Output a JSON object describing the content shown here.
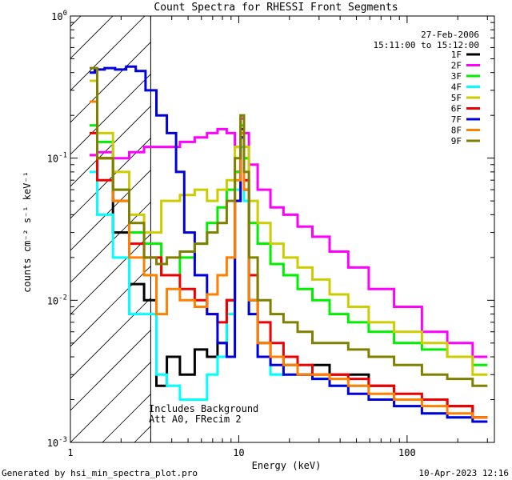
{
  "chart_data": {
    "type": "line",
    "title": "Count Spectra for RHESSI Front Segments",
    "xlabel": "Energy (keV)",
    "ylabel": "counts cm⁻² s⁻¹ keV⁻¹",
    "xscale": "log",
    "yscale": "log",
    "xlim": [
      1,
      330
    ],
    "ylim": [
      0.001,
      1
    ],
    "x_ticks": [
      {
        "value": 1,
        "label": "1"
      },
      {
        "value": 10,
        "label": "10"
      },
      {
        "value": 100,
        "label": "100"
      }
    ],
    "y_ticks": [
      {
        "value": 1,
        "base": "10",
        "exp": "0"
      },
      {
        "value": 0.1,
        "base": "10",
        "exp": "-1"
      },
      {
        "value": 0.01,
        "base": "10",
        "exp": "-2"
      },
      {
        "value": 0.001,
        "base": "10",
        "exp": "-3"
      }
    ],
    "date": "27-Feb-2006",
    "time_range": "15:11:00 to 15:12:00",
    "annotations": [
      "Includes Background",
      "Att A0, FRecim 2"
    ],
    "excluded_region_below_keV": 3,
    "series": [
      {
        "name": "1F",
        "color": "#000000",
        "x": [
          1.3,
          1.6,
          2.0,
          2.5,
          3.0,
          3.5,
          4.0,
          5.0,
          6.0,
          7.0,
          8.0,
          9.0,
          10.0,
          10.5,
          11.0,
          12.0,
          14.0,
          17.0,
          20.0,
          25.0,
          30.0,
          40.0,
          50.0,
          70.0,
          100.0,
          150.0,
          200.0,
          300.0
        ],
        "y": [
          0.25,
          0.1,
          0.03,
          0.013,
          0.01,
          0.0025,
          0.004,
          0.003,
          0.0045,
          0.004,
          0.005,
          0.01,
          0.08,
          0.16,
          0.06,
          0.01,
          0.005,
          0.004,
          0.0035,
          0.003,
          0.0035,
          0.003,
          0.003,
          0.0025,
          0.002,
          0.002,
          0.0018,
          0.0015
        ]
      },
      {
        "name": "2F",
        "color": "#ff00ff",
        "x": [
          1.3,
          1.6,
          2.0,
          2.5,
          3.0,
          4.0,
          5.0,
          6.0,
          7.0,
          8.0,
          9.0,
          10.0,
          10.5,
          11.0,
          12.0,
          14.0,
          17.0,
          20.0,
          25.0,
          30.0,
          40.0,
          50.0,
          70.0,
          100.0,
          150.0,
          200.0,
          300.0
        ],
        "y": [
          0.105,
          0.11,
          0.1,
          0.11,
          0.12,
          0.12,
          0.13,
          0.14,
          0.15,
          0.16,
          0.15,
          0.12,
          0.19,
          0.15,
          0.09,
          0.06,
          0.045,
          0.04,
          0.033,
          0.028,
          0.022,
          0.017,
          0.012,
          0.009,
          0.006,
          0.005,
          0.004
        ]
      },
      {
        "name": "3F",
        "color": "#00ee00",
        "x": [
          1.3,
          1.6,
          2.0,
          2.5,
          3.0,
          4.0,
          5.0,
          6.0,
          7.0,
          8.0,
          9.0,
          10.0,
          10.5,
          11.0,
          12.0,
          14.0,
          17.0,
          20.0,
          25.0,
          30.0,
          40.0,
          50.0,
          70.0,
          100.0,
          150.0,
          200.0,
          300.0
        ],
        "y": [
          0.17,
          0.13,
          0.06,
          0.03,
          0.025,
          0.015,
          0.02,
          0.025,
          0.035,
          0.045,
          0.06,
          0.08,
          0.17,
          0.1,
          0.035,
          0.025,
          0.018,
          0.015,
          0.012,
          0.01,
          0.008,
          0.007,
          0.006,
          0.005,
          0.0045,
          0.004,
          0.0035
        ]
      },
      {
        "name": "4F",
        "color": "#00ffff",
        "x": [
          1.3,
          1.6,
          2.0,
          2.5,
          3.0,
          3.5,
          4.0,
          5.0,
          6.0,
          7.0,
          8.0,
          9.0,
          10.0,
          10.5,
          11.0,
          12.0,
          14.0,
          17.0,
          20.0,
          25.0,
          30.0,
          40.0,
          50.0,
          70.0,
          100.0,
          150.0,
          200.0,
          300.0
        ],
        "y": [
          0.08,
          0.04,
          0.02,
          0.008,
          0.008,
          0.003,
          0.0025,
          0.002,
          0.002,
          0.003,
          0.004,
          0.008,
          0.06,
          0.12,
          0.05,
          0.008,
          0.004,
          0.003,
          0.0035,
          0.003,
          0.0028,
          0.0025,
          0.0025,
          0.002,
          0.0018,
          0.0016,
          0.0015,
          0.0014
        ]
      },
      {
        "name": "5F",
        "color": "#cccc00",
        "x": [
          1.3,
          1.6,
          2.0,
          2.5,
          3.0,
          4.0,
          5.0,
          6.0,
          7.0,
          8.0,
          9.0,
          10.0,
          10.5,
          11.0,
          12.0,
          14.0,
          17.0,
          20.0,
          25.0,
          30.0,
          40.0,
          50.0,
          70.0,
          100.0,
          150.0,
          200.0,
          300.0
        ],
        "y": [
          0.35,
          0.15,
          0.08,
          0.04,
          0.03,
          0.05,
          0.055,
          0.06,
          0.05,
          0.06,
          0.07,
          0.12,
          0.2,
          0.12,
          0.05,
          0.035,
          0.025,
          0.02,
          0.017,
          0.014,
          0.011,
          0.009,
          0.007,
          0.006,
          0.005,
          0.004,
          0.003
        ]
      },
      {
        "name": "6F",
        "color": "#ee0000",
        "x": [
          1.3,
          1.6,
          2.0,
          2.5,
          3.0,
          4.0,
          5.0,
          6.0,
          7.0,
          8.0,
          9.0,
          10.0,
          10.5,
          11.0,
          12.0,
          14.0,
          17.0,
          20.0,
          25.0,
          30.0,
          40.0,
          50.0,
          70.0,
          100.0,
          150.0,
          200.0,
          300.0
        ],
        "y": [
          0.15,
          0.07,
          0.05,
          0.025,
          0.02,
          0.015,
          0.012,
          0.01,
          0.008,
          0.007,
          0.01,
          0.05,
          0.14,
          0.07,
          0.015,
          0.007,
          0.005,
          0.004,
          0.0035,
          0.003,
          0.003,
          0.0028,
          0.0025,
          0.0022,
          0.002,
          0.0018,
          0.0015
        ]
      },
      {
        "name": "7F",
        "color": "#0000dd",
        "x": [
          1.3,
          1.5,
          1.7,
          2.0,
          2.3,
          2.6,
          3.0,
          3.5,
          4.0,
          4.5,
          5.0,
          6.0,
          7.0,
          8.0,
          9.0,
          10.0,
          10.5,
          11.0,
          12.0,
          14.0,
          17.0,
          20.0,
          25.0,
          30.0,
          40.0,
          50.0,
          70.0,
          100.0,
          150.0,
          200.0,
          300.0
        ],
        "y": [
          0.4,
          0.42,
          0.43,
          0.42,
          0.44,
          0.41,
          0.3,
          0.2,
          0.15,
          0.08,
          0.03,
          0.015,
          0.008,
          0.005,
          0.004,
          0.05,
          0.14,
          0.06,
          0.008,
          0.004,
          0.0035,
          0.003,
          0.003,
          0.0028,
          0.0025,
          0.0022,
          0.002,
          0.0018,
          0.0016,
          0.0015,
          0.0014
        ]
      },
      {
        "name": "8F",
        "color": "#ff8000",
        "x": [
          1.3,
          1.6,
          2.0,
          2.5,
          3.0,
          3.5,
          4.0,
          5.0,
          6.0,
          7.0,
          8.0,
          9.0,
          10.0,
          10.5,
          11.0,
          12.0,
          14.0,
          17.0,
          20.0,
          25.0,
          30.0,
          40.0,
          50.0,
          70.0,
          100.0,
          150.0,
          200.0,
          300.0
        ],
        "y": [
          0.25,
          0.1,
          0.05,
          0.02,
          0.015,
          0.008,
          0.012,
          0.01,
          0.009,
          0.011,
          0.015,
          0.02,
          0.07,
          0.15,
          0.06,
          0.01,
          0.005,
          0.004,
          0.0035,
          0.003,
          0.003,
          0.0028,
          0.0025,
          0.0022,
          0.002,
          0.0018,
          0.0016,
          0.0015
        ]
      },
      {
        "name": "9F",
        "color": "#808000",
        "x": [
          1.3,
          1.6,
          2.0,
          2.5,
          3.0,
          3.5,
          4.0,
          5.0,
          6.0,
          7.0,
          8.0,
          9.0,
          10.0,
          10.5,
          11.0,
          12.0,
          14.0,
          17.0,
          20.0,
          25.0,
          30.0,
          40.0,
          50.0,
          70.0,
          100.0,
          150.0,
          200.0,
          300.0
        ],
        "y": [
          0.43,
          0.1,
          0.06,
          0.035,
          0.02,
          0.018,
          0.02,
          0.022,
          0.025,
          0.03,
          0.035,
          0.05,
          0.1,
          0.2,
          0.08,
          0.02,
          0.01,
          0.008,
          0.007,
          0.006,
          0.005,
          0.005,
          0.0045,
          0.004,
          0.0035,
          0.003,
          0.0028,
          0.0025
        ]
      }
    ]
  },
  "footer": {
    "generated_by": "Generated by hsi_min_spectra_plot.pro",
    "timestamp": "10-Apr-2023 12:16"
  }
}
